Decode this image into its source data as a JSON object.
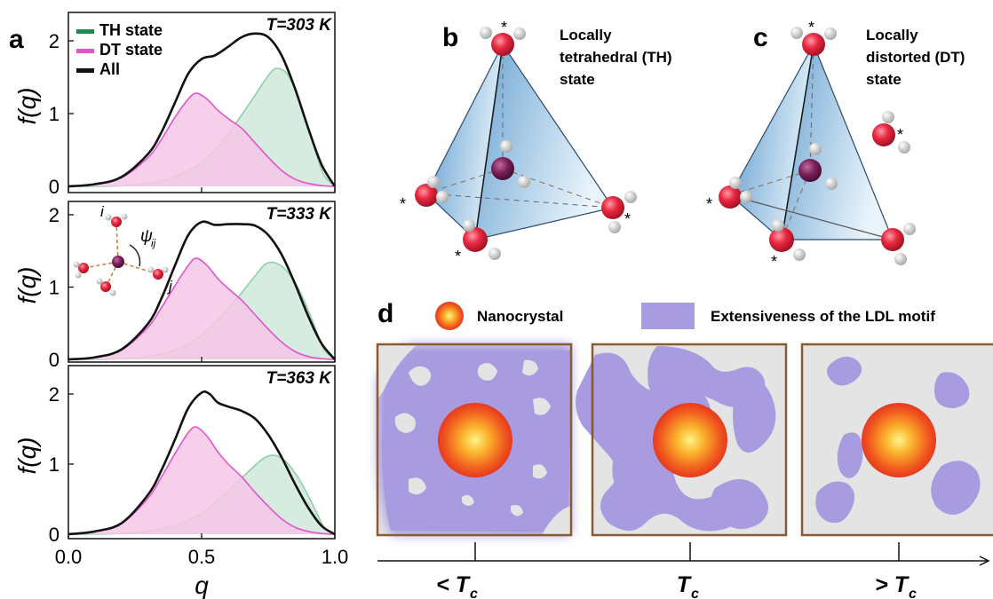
{
  "figure": {
    "panel_labels": {
      "a": "a",
      "b": "b",
      "c": "c",
      "d": "d"
    },
    "colors": {
      "th": "#1e8a4e",
      "th_fill": "#cfe9db",
      "dt": "#e254c8",
      "dt_fill": "#f7c7e8",
      "all": "#111111",
      "lattice": "#a89bdf",
      "bg_gray": "#e4e4e4",
      "frame": "#8a5a33"
    }
  },
  "chart_data": [
    {
      "type": "area",
      "annotation": "T=303 K",
      "ylabel": "f(q)",
      "xlabel": "",
      "xlim": [
        0,
        1
      ],
      "ylim": [
        0,
        2.4
      ],
      "ytick_labels": [
        "0",
        "1",
        "2"
      ],
      "legend_position": "top-left",
      "legend": [
        {
          "name": "TH state",
          "color": "#1e8a4e"
        },
        {
          "name": "DT state",
          "color": "#e254c8"
        },
        {
          "name": "All",
          "color": "#111111"
        }
      ],
      "series": [
        {
          "name": "TH state",
          "x": [
            0.0,
            0.1,
            0.2,
            0.3,
            0.4,
            0.5,
            0.55,
            0.6,
            0.65,
            0.7,
            0.75,
            0.78,
            0.82,
            0.86,
            0.9,
            0.93,
            0.96,
            1.0
          ],
          "values": [
            0,
            0,
            0.01,
            0.04,
            0.13,
            0.33,
            0.5,
            0.72,
            0.98,
            1.25,
            1.52,
            1.62,
            1.55,
            1.25,
            0.8,
            0.45,
            0.15,
            0
          ]
        },
        {
          "name": "DT state",
          "x": [
            0.0,
            0.1,
            0.2,
            0.3,
            0.35,
            0.4,
            0.45,
            0.48,
            0.52,
            0.56,
            0.6,
            0.65,
            0.7,
            0.75,
            0.8,
            0.85,
            0.9,
            0.95,
            1.0
          ],
          "values": [
            0,
            0.03,
            0.12,
            0.4,
            0.65,
            0.95,
            1.2,
            1.28,
            1.2,
            1.05,
            0.93,
            0.8,
            0.6,
            0.4,
            0.22,
            0.1,
            0.04,
            0.01,
            0
          ]
        },
        {
          "name": "All",
          "x": [
            0.0,
            0.1,
            0.2,
            0.3,
            0.35,
            0.4,
            0.45,
            0.5,
            0.55,
            0.6,
            0.65,
            0.7,
            0.75,
            0.8,
            0.85,
            0.9,
            0.95,
            1.0
          ],
          "values": [
            0,
            0.03,
            0.13,
            0.45,
            0.75,
            1.15,
            1.55,
            1.75,
            1.8,
            1.92,
            2.05,
            2.1,
            2.05,
            1.8,
            1.35,
            0.8,
            0.3,
            0
          ]
        }
      ]
    },
    {
      "type": "area",
      "annotation": "T=333 K",
      "ylabel": "f(q)",
      "xlabel": "",
      "xlim": [
        0,
        1
      ],
      "ylim": [
        0,
        2.4
      ],
      "ytick_labels": [
        "0",
        "1",
        "2"
      ],
      "inset_labels": {
        "i": "i",
        "j": "j",
        "psi": "ψ",
        "psi_sub": "ij"
      },
      "series": [
        {
          "name": "TH state",
          "x": [
            0.0,
            0.2,
            0.3,
            0.4,
            0.5,
            0.55,
            0.6,
            0.65,
            0.7,
            0.74,
            0.78,
            0.82,
            0.86,
            0.9,
            0.93,
            0.96,
            1.0
          ],
          "values": [
            0,
            0.01,
            0.04,
            0.13,
            0.33,
            0.5,
            0.7,
            0.92,
            1.15,
            1.32,
            1.33,
            1.22,
            1.0,
            0.68,
            0.4,
            0.13,
            0
          ]
        },
        {
          "name": "DT state",
          "x": [
            0.0,
            0.1,
            0.2,
            0.3,
            0.35,
            0.4,
            0.45,
            0.48,
            0.52,
            0.56,
            0.6,
            0.65,
            0.7,
            0.75,
            0.8,
            0.85,
            0.9,
            0.95,
            1.0
          ],
          "values": [
            0,
            0.03,
            0.13,
            0.45,
            0.72,
            1.02,
            1.3,
            1.4,
            1.3,
            1.12,
            0.98,
            0.82,
            0.62,
            0.42,
            0.24,
            0.11,
            0.04,
            0.01,
            0
          ]
        },
        {
          "name": "All",
          "x": [
            0.0,
            0.1,
            0.2,
            0.3,
            0.35,
            0.4,
            0.45,
            0.5,
            0.55,
            0.6,
            0.65,
            0.7,
            0.75,
            0.8,
            0.85,
            0.9,
            0.95,
            1.0
          ],
          "values": [
            0,
            0.03,
            0.14,
            0.5,
            0.85,
            1.3,
            1.72,
            1.9,
            1.86,
            1.87,
            1.87,
            1.85,
            1.72,
            1.45,
            1.05,
            0.6,
            0.22,
            0
          ]
        }
      ]
    },
    {
      "type": "area",
      "annotation": "T=363 K",
      "ylabel": "f(q)",
      "xlabel": "q",
      "xlim": [
        0,
        1
      ],
      "ylim": [
        0,
        2.4
      ],
      "ytick_labels": [
        "0",
        "1",
        "2"
      ],
      "xtick_labels": [
        "0.0",
        "0.5",
        "1.0"
      ],
      "series": [
        {
          "name": "TH state",
          "x": [
            0.0,
            0.2,
            0.3,
            0.4,
            0.5,
            0.55,
            0.6,
            0.65,
            0.7,
            0.74,
            0.78,
            0.82,
            0.86,
            0.9,
            0.93,
            0.96,
            1.0
          ],
          "values": [
            0,
            0.01,
            0.04,
            0.12,
            0.3,
            0.45,
            0.62,
            0.8,
            0.98,
            1.1,
            1.12,
            1.02,
            0.82,
            0.55,
            0.32,
            0.1,
            0
          ]
        },
        {
          "name": "DT state",
          "x": [
            0.0,
            0.1,
            0.2,
            0.3,
            0.35,
            0.4,
            0.45,
            0.48,
            0.52,
            0.56,
            0.6,
            0.65,
            0.7,
            0.75,
            0.8,
            0.85,
            0.9,
            0.95,
            1.0
          ],
          "values": [
            0,
            0.04,
            0.15,
            0.52,
            0.82,
            1.15,
            1.45,
            1.53,
            1.4,
            1.18,
            1.0,
            0.82,
            0.6,
            0.4,
            0.22,
            0.1,
            0.04,
            0.01,
            0
          ]
        },
        {
          "name": "All",
          "x": [
            0.0,
            0.1,
            0.2,
            0.3,
            0.35,
            0.4,
            0.45,
            0.5,
            0.53,
            0.56,
            0.6,
            0.65,
            0.7,
            0.75,
            0.8,
            0.85,
            0.9,
            0.95,
            1.0
          ],
          "values": [
            0,
            0.04,
            0.16,
            0.57,
            0.92,
            1.35,
            1.8,
            2.02,
            2.0,
            1.88,
            1.82,
            1.76,
            1.65,
            1.42,
            1.1,
            0.72,
            0.38,
            0.12,
            0
          ]
        }
      ]
    }
  ],
  "panel_b": {
    "title_lines": [
      "Locally",
      "tetrahedral (TH)",
      "state"
    ],
    "star": "*"
  },
  "panel_c": {
    "title_lines": [
      "Locally",
      "distorted (DT)",
      "state"
    ],
    "star": "*"
  },
  "panel_d": {
    "legend_nanocrystal": "Nanocrystal",
    "legend_ldl": "Extensiveness of the LDL motif",
    "axis_labels": [
      "< T",
      "T",
      "> T"
    ],
    "axis_sub": "c"
  }
}
